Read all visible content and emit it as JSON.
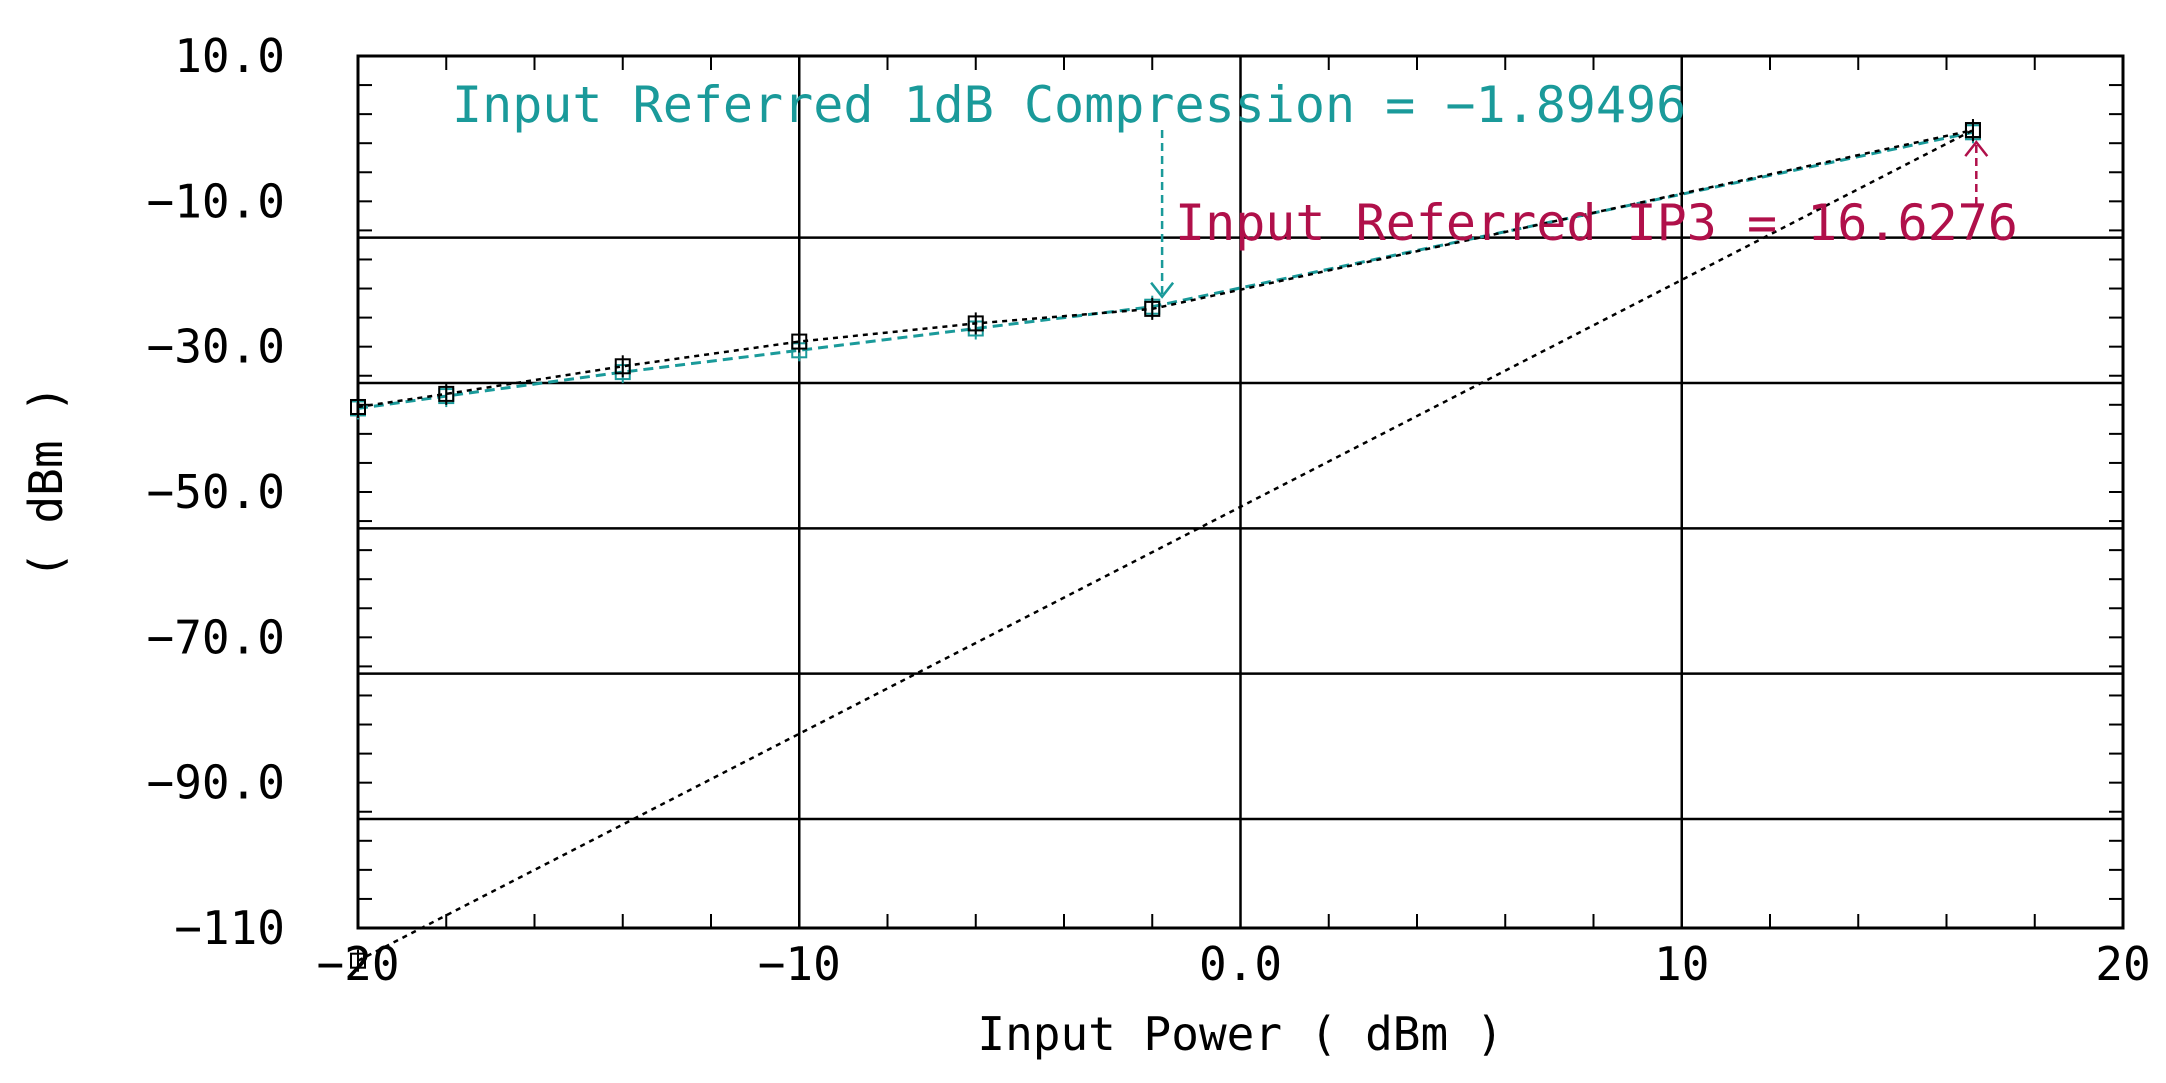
{
  "chart_data": {
    "type": "line",
    "xlabel": "Input Power ( dBm )",
    "ylabel": "( dBm )",
    "xlim": [
      -20,
      20
    ],
    "ylim": [
      -110,
      10
    ],
    "x_ticks": [
      {
        "value": -20,
        "label": "−20"
      },
      {
        "value": -10,
        "label": "−10"
      },
      {
        "value": 0,
        "label": "0.0"
      },
      {
        "value": 10,
        "label": "10"
      },
      {
        "value": 20,
        "label": "20"
      }
    ],
    "y_ticks": [
      {
        "value": 10,
        "label": "10.0"
      },
      {
        "value": -10,
        "label": "−10.0"
      },
      {
        "value": -30,
        "label": "−30.0"
      },
      {
        "value": -50,
        "label": "−50.0"
      },
      {
        "value": -70,
        "label": "−70.0"
      },
      {
        "value": -90,
        "label": "−90.0"
      },
      {
        "value": -110,
        "label": "−110"
      }
    ],
    "y_gridlines": [
      -15,
      -35,
      -55,
      -75,
      -95
    ],
    "x_gridlines": [
      -10,
      0,
      10
    ],
    "grid": true,
    "series": [
      {
        "color": "#1a9a9a",
        "style": "dashed",
        "points": [
          [
            -20,
            -38.5
          ],
          [
            -18,
            -36.8
          ],
          [
            -14,
            -33.5
          ],
          [
            -10,
            -30.5
          ],
          [
            -6,
            -27.5
          ],
          [
            -2,
            -24.5
          ],
          [
            16.6,
            -0.5
          ]
        ]
      },
      {
        "color": "#000000",
        "style": "dotted",
        "points": [
          [
            -20,
            -38.3
          ],
          [
            -18,
            -36.5
          ],
          [
            -14,
            -32.7
          ],
          [
            -10,
            -29.3
          ],
          [
            -6,
            -26.8
          ],
          [
            -2,
            -24.8
          ],
          [
            16.6,
            -0.2
          ]
        ]
      },
      {
        "color": "#000000",
        "style": "dotted",
        "points": [
          [
            -20,
            -114.5
          ],
          [
            16.6,
            -0.2
          ]
        ]
      }
    ],
    "annotations": [
      {
        "text": "Input Referred 1dB Compression = −1.89496",
        "color": "#1a9a9a",
        "x": -1.89,
        "y": -24.5
      },
      {
        "text": "Input Referred IP3 = 16.6276",
        "color": "#b0104a",
        "x": 16.63,
        "y": -0.2
      }
    ]
  }
}
